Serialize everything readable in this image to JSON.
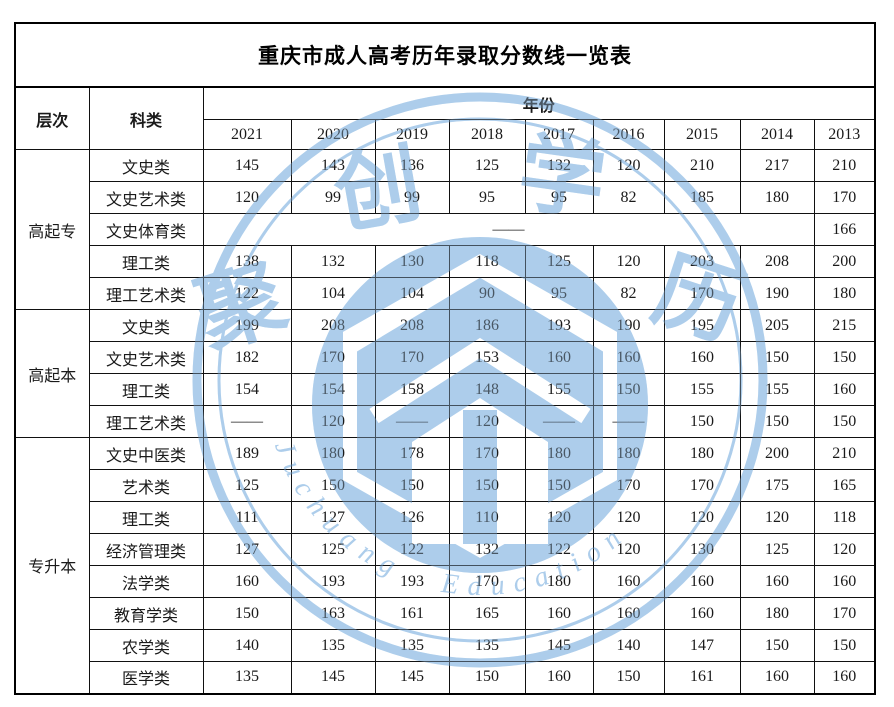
{
  "title": "重庆市成人高考历年录取分数线一览表",
  "header": {
    "level_label": "层次",
    "category_label": "科类",
    "year_label": "年份",
    "years": [
      "2021",
      "2020",
      "2019",
      "2018",
      "2017",
      "2016",
      "2015",
      "2014",
      "2013"
    ]
  },
  "groups": [
    {
      "level": "高起专",
      "rows": [
        {
          "category": "文史类",
          "values": [
            "145",
            "143",
            "136",
            "125",
            "132",
            "120",
            "210",
            "217",
            "210"
          ]
        },
        {
          "category": "文史艺术类",
          "values": [
            "120",
            "99",
            "99",
            "95",
            "95",
            "82",
            "185",
            "180",
            "170"
          ]
        },
        {
          "category": "文史体育类",
          "span": {
            "cols": 8,
            "value": "——"
          },
          "values": [
            "166"
          ]
        },
        {
          "category": "理工类",
          "values": [
            "138",
            "132",
            "130",
            "118",
            "125",
            "120",
            "203",
            "208",
            "200"
          ]
        },
        {
          "category": "理工艺术类",
          "values": [
            "122",
            "104",
            "104",
            "90",
            "95",
            "82",
            "170",
            "190",
            "180"
          ]
        }
      ]
    },
    {
      "level": "高起本",
      "rows": [
        {
          "category": "文史类",
          "values": [
            "199",
            "208",
            "208",
            "186",
            "193",
            "190",
            "195",
            "205",
            "215"
          ]
        },
        {
          "category": "文史艺术类",
          "values": [
            "182",
            "170",
            "170",
            "153",
            "160",
            "160",
            "160",
            "150",
            "150"
          ]
        },
        {
          "category": "理工类",
          "values": [
            "154",
            "154",
            "158",
            "148",
            "155",
            "150",
            "155",
            "155",
            "160"
          ]
        },
        {
          "category": "理工艺术类",
          "values": [
            "——",
            "120",
            "——",
            "120",
            "——",
            "——",
            "150",
            "150",
            "150"
          ]
        }
      ]
    },
    {
      "level": "专升本",
      "rows": [
        {
          "category": "文史中医类",
          "values": [
            "189",
            "180",
            "178",
            "170",
            "180",
            "180",
            "180",
            "200",
            "210"
          ]
        },
        {
          "category": "艺术类",
          "values": [
            "125",
            "150",
            "150",
            "150",
            "150",
            "170",
            "170",
            "175",
            "165"
          ]
        },
        {
          "category": "理工类",
          "values": [
            "111",
            "127",
            "126",
            "110",
            "120",
            "120",
            "120",
            "120",
            "118"
          ]
        },
        {
          "category": "经济管理类",
          "values": [
            "127",
            "125",
            "122",
            "132",
            "122",
            "120",
            "130",
            "125",
            "120"
          ]
        },
        {
          "category": "法学类",
          "values": [
            "160",
            "193",
            "193",
            "170",
            "180",
            "160",
            "160",
            "160",
            "160"
          ]
        },
        {
          "category": "教育学类",
          "values": [
            "150",
            "163",
            "161",
            "165",
            "160",
            "160",
            "160",
            "180",
            "170"
          ]
        },
        {
          "category": "农学类",
          "values": [
            "140",
            "135",
            "135",
            "135",
            "145",
            "140",
            "147",
            "150",
            "150"
          ]
        },
        {
          "category": "医学类",
          "values": [
            "135",
            "145",
            "145",
            "150",
            "160",
            "150",
            "161",
            "160",
            "160"
          ]
        }
      ]
    }
  ],
  "watermark": {
    "chars": [
      "聚",
      "创",
      "学",
      "历"
    ],
    "brand": "Juchuang Education",
    "ink_color": "#a6cbea"
  },
  "colors": {
    "border": "#000000",
    "text": "#1a1a1a",
    "watermark_light": "#b7d4ee",
    "watermark_deep": "#9cc3e6"
  }
}
